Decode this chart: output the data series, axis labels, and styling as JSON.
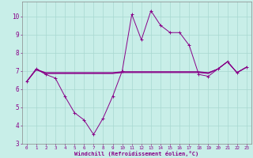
{
  "xlabel": "Windchill (Refroidissement éolien,°C)",
  "bg_color": "#c8eee8",
  "grid_color": "#a8d8d0",
  "line_color": "#880088",
  "x_values": [
    0,
    1,
    2,
    3,
    4,
    5,
    6,
    7,
    8,
    9,
    10,
    11,
    12,
    13,
    14,
    15,
    16,
    17,
    18,
    19,
    20,
    21,
    22,
    23
  ],
  "y_windchill": [
    6.4,
    7.1,
    6.8,
    6.6,
    5.6,
    4.7,
    4.3,
    3.5,
    4.4,
    5.6,
    7.0,
    10.1,
    8.7,
    10.3,
    9.5,
    9.1,
    9.1,
    8.4,
    6.8,
    6.7,
    7.1,
    7.5,
    6.9,
    7.2
  ],
  "y_temp": [
    6.4,
    7.1,
    6.85,
    6.85,
    6.85,
    6.85,
    6.85,
    6.85,
    6.85,
    6.85,
    6.9,
    6.9,
    6.9,
    6.9,
    6.9,
    6.9,
    6.9,
    6.9,
    6.9,
    6.85,
    7.1,
    7.5,
    6.9,
    7.2
  ],
  "y_flat1": [
    6.4,
    7.05,
    6.87,
    6.87,
    6.87,
    6.87,
    6.87,
    6.87,
    6.87,
    6.87,
    6.93,
    6.93,
    6.93,
    6.93,
    6.93,
    6.93,
    6.93,
    6.93,
    6.93,
    6.87,
    7.1,
    7.5,
    6.9,
    7.2
  ],
  "y_flat2": [
    6.4,
    7.08,
    6.9,
    6.9,
    6.9,
    6.9,
    6.9,
    6.9,
    6.9,
    6.9,
    6.95,
    6.95,
    6.95,
    6.95,
    6.95,
    6.95,
    6.95,
    6.95,
    6.95,
    6.9,
    7.1,
    7.5,
    6.9,
    7.2
  ],
  "ylim": [
    3.0,
    10.8
  ],
  "yticks": [
    3,
    4,
    5,
    6,
    7,
    8,
    9,
    10
  ],
  "xticks": [
    0,
    1,
    2,
    3,
    4,
    5,
    6,
    7,
    8,
    9,
    10,
    11,
    12,
    13,
    14,
    15,
    16,
    17,
    18,
    19,
    20,
    21,
    22,
    23
  ]
}
